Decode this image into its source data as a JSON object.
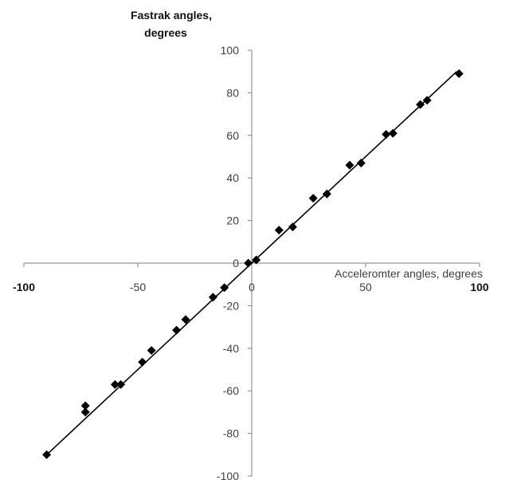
{
  "chart_data": {
    "type": "scatter",
    "title": "",
    "xlabel": "Acceleromter angles, degrees",
    "ylabel_line1": "Fastrak angles,",
    "ylabel_line2": "degrees",
    "xlim": [
      -100,
      100
    ],
    "ylim": [
      -100,
      100
    ],
    "x_ticks": [
      -100,
      -50,
      0,
      50,
      100
    ],
    "x_tick_labels": [
      "-100",
      "-50",
      "0",
      "50",
      "100"
    ],
    "y_ticks": [
      -100,
      -80,
      -60,
      -40,
      -20,
      0,
      20,
      40,
      60,
      80,
      100
    ],
    "y_tick_labels": [
      "-100",
      "-80",
      "-60",
      "-40",
      "-20",
      "0",
      "20",
      "40",
      "60",
      "80",
      "100"
    ],
    "grid": false,
    "legend": "none",
    "marker": "diamond",
    "marker_color": "#000000",
    "line_color": "#000000",
    "trendline": {
      "x": [
        -90,
        90
      ],
      "y": [
        -90,
        90
      ]
    },
    "series": [
      {
        "x": [
          -90,
          -73,
          -73,
          -60,
          -57.5,
          -48,
          -44,
          -33,
          -29,
          -17,
          -12,
          -1.5,
          2,
          12,
          18,
          27,
          33,
          43,
          48,
          59,
          62,
          74,
          77,
          91
        ],
        "y": [
          -90,
          -67,
          -70,
          -57,
          -57,
          -46.5,
          -41,
          -31.5,
          -26.5,
          -16,
          -11.5,
          0,
          1.5,
          15.5,
          17,
          30.5,
          32.5,
          46,
          47,
          60.5,
          61,
          74.5,
          76.5,
          89
        ]
      }
    ]
  }
}
